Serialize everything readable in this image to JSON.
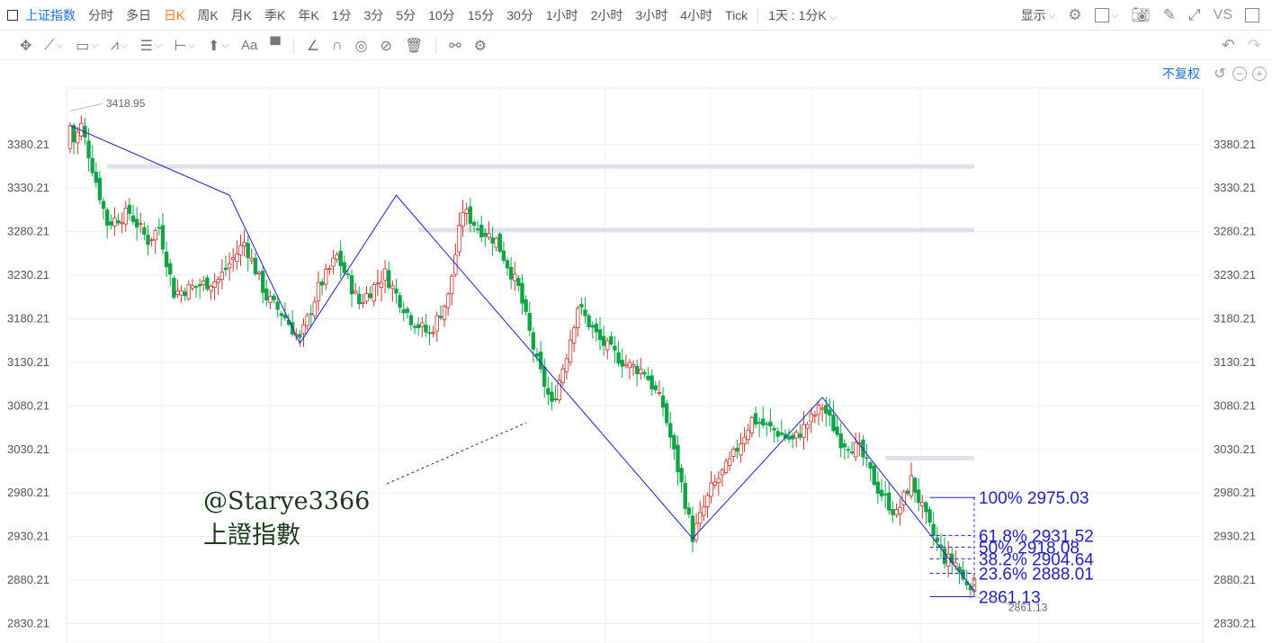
{
  "topbar": {
    "symbol": "上证指数",
    "periods": [
      "分时",
      "多日",
      "日K",
      "周K",
      "月K",
      "季K",
      "年K",
      "1分",
      "3分",
      "5分",
      "10分",
      "15分",
      "30分",
      "1小时",
      "2小时",
      "3小时",
      "4小时",
      "Tick"
    ],
    "active_period": "日K",
    "custom_period": "1天 : 1分K",
    "display_label": "显示",
    "vs_label": "VS"
  },
  "toolbar": {
    "tools": [
      "move-icon",
      "trend-line-icon",
      "rectangle-icon",
      "zigzag-icon",
      "fibonacci-icon",
      "measure-icon",
      "arrow-up-icon",
      "text-icon",
      "comment-icon",
      "ruler-icon",
      "magnet-icon",
      "eye-icon",
      "hide-icon",
      "trash-icon",
      "link-icon",
      "settings-icon"
    ]
  },
  "fq_label": "不复权",
  "colors": {
    "up": "#c23531",
    "down": "#14a34a",
    "drawing": "#2020c0",
    "resistance": "#dde1ea",
    "accent": "#1e6fd9",
    "active_period": "#f47920",
    "watermark": "#1a3a1a"
  },
  "watermark": {
    "line1": "@Starye3366",
    "line2": "上證指數"
  },
  "chart_data": {
    "type": "candlestick",
    "symbol": "上证指数",
    "y_ticks": [
      3380.21,
      3330.21,
      3280.21,
      3230.21,
      3180.21,
      3130.21,
      3080.21,
      3030.21,
      2980.21,
      2930.21,
      2880.21,
      2830.21
    ],
    "ylim": [
      2808,
      3445
    ],
    "high_label": "3418.95",
    "low_label": "2861.13",
    "zigzag": [
      [
        0,
        3402
      ],
      [
        43,
        3322
      ],
      [
        62,
        3152
      ],
      [
        88,
        3322
      ],
      [
        168,
        2928
      ],
      [
        203,
        3090
      ],
      [
        244,
        2868
      ]
    ],
    "resistance_levels": [
      {
        "from": 10,
        "to": 244,
        "value": 3355
      },
      {
        "from": 94,
        "to": 244,
        "value": 3282
      },
      {
        "from": 220,
        "to": 244,
        "value": 3020
      }
    ],
    "fibonacci": [
      {
        "label": "100% 2975.03",
        "value": 2975.03
      },
      {
        "label": "61.8% 2931.52",
        "value": 2931.52
      },
      {
        "label": "50% 2918.08",
        "value": 2918.08
      },
      {
        "label": "38.2% 2904.64",
        "value": 2904.64
      },
      {
        "label": "23.6% 2888.01",
        "value": 2888.01
      },
      {
        "label": "2861.13",
        "value": 2861.13
      }
    ],
    "fib_start_index": 232,
    "candle_count": 245,
    "waypoints": [
      [
        0,
        3375
      ],
      [
        3,
        3402
      ],
      [
        10,
        3290
      ],
      [
        16,
        3302
      ],
      [
        21,
        3270
      ],
      [
        24,
        3285
      ],
      [
        28,
        3210
      ],
      [
        40,
        3225
      ],
      [
        47,
        3268
      ],
      [
        53,
        3205
      ],
      [
        58,
        3182
      ],
      [
        62,
        3155
      ],
      [
        67,
        3215
      ],
      [
        72,
        3252
      ],
      [
        78,
        3198
      ],
      [
        85,
        3232
      ],
      [
        88,
        3208
      ],
      [
        92,
        3180
      ],
      [
        97,
        3162
      ],
      [
        102,
        3205
      ],
      [
        106,
        3305
      ],
      [
        110,
        3285
      ],
      [
        115,
        3270
      ],
      [
        121,
        3215
      ],
      [
        126,
        3130
      ],
      [
        130,
        3080
      ],
      [
        134,
        3140
      ],
      [
        137,
        3195
      ],
      [
        143,
        3155
      ],
      [
        150,
        3128
      ],
      [
        155,
        3120
      ],
      [
        160,
        3080
      ],
      [
        165,
        2990
      ],
      [
        168,
        2930
      ],
      [
        173,
        2985
      ],
      [
        178,
        3015
      ],
      [
        184,
        3065
      ],
      [
        190,
        3052
      ],
      [
        195,
        3040
      ],
      [
        200,
        3065
      ],
      [
        203,
        3080
      ],
      [
        208,
        3040
      ],
      [
        213,
        3030
      ],
      [
        218,
        2985
      ],
      [
        223,
        2955
      ],
      [
        227,
        2995
      ],
      [
        232,
        2940
      ],
      [
        236,
        2905
      ],
      [
        239,
        2900
      ],
      [
        241,
        2880
      ],
      [
        244,
        2875
      ]
    ]
  }
}
